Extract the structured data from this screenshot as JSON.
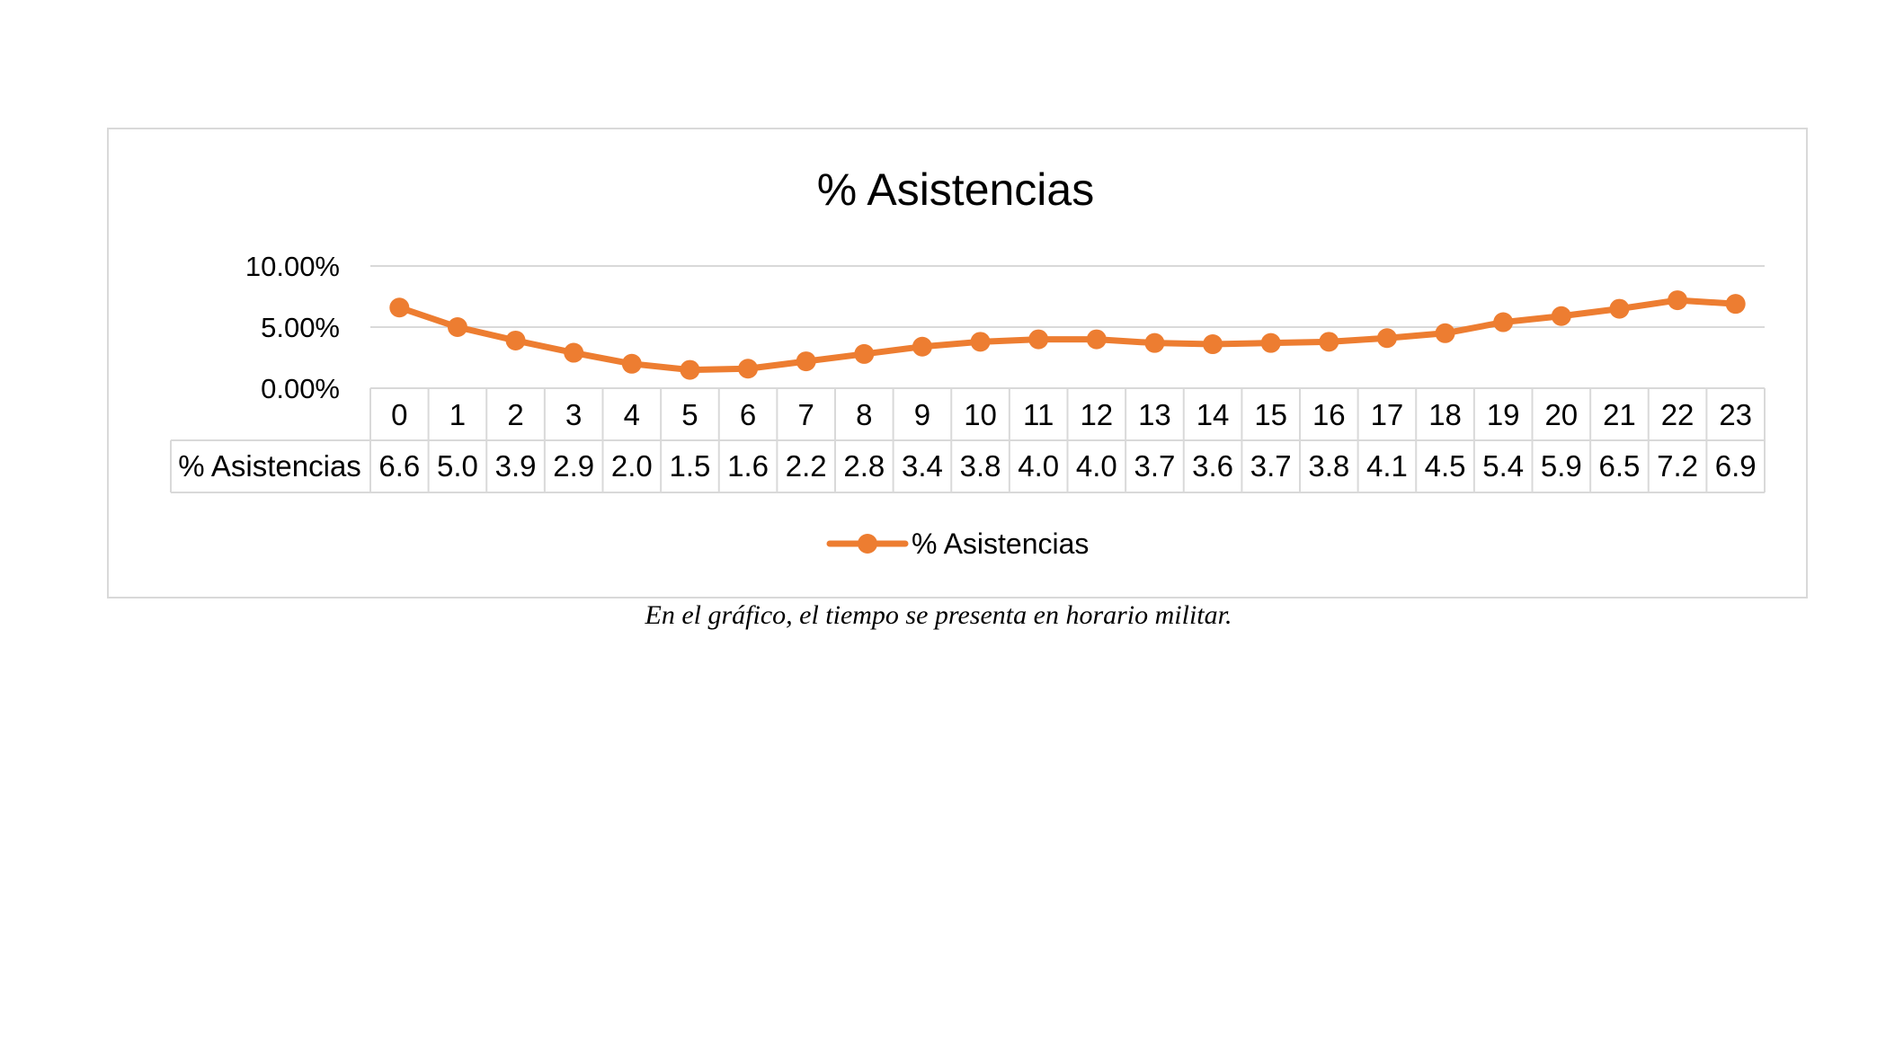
{
  "chart_data": {
    "type": "line",
    "title": "% Asistencias",
    "xlabel": "",
    "ylabel": "",
    "x": [
      "0",
      "1",
      "2",
      "3",
      "4",
      "5",
      "6",
      "7",
      "8",
      "9",
      "10",
      "11",
      "12",
      "13",
      "14",
      "15",
      "16",
      "17",
      "18",
      "19",
      "20",
      "21",
      "22",
      "23"
    ],
    "series": [
      {
        "name": "% Asistencias",
        "values": [
          6.6,
          5.0,
          3.9,
          2.9,
          2.0,
          1.5,
          1.6,
          2.2,
          2.8,
          3.4,
          3.8,
          4.0,
          4.0,
          3.7,
          3.6,
          3.7,
          3.8,
          4.1,
          4.5,
          5.4,
          5.9,
          6.5,
          7.2,
          6.9
        ],
        "labels": [
          "6.6",
          "5.0",
          "3.9",
          "2.9",
          "2.0",
          "1.5",
          "1.6",
          "2.2",
          "2.8",
          "3.4",
          "3.8",
          "4.0",
          "4.0",
          "3.7",
          "3.6",
          "3.7",
          "3.8",
          "4.1",
          "4.5",
          "5.4",
          "5.9",
          "6.5",
          "7.2",
          "6.9"
        ],
        "color": "#ED7D31"
      }
    ],
    "ylim": [
      0,
      10
    ],
    "yticks": [
      "0.00%",
      "5.00%",
      "10.00%"
    ],
    "grid": true,
    "legend": "bottom",
    "data_table": true
  },
  "caption": "En el gráfico, el tiempo se presenta en horario militar.",
  "colors": {
    "series": "#ED7D31",
    "grid": "#D9D9D9",
    "border": "#D9D9D9"
  }
}
